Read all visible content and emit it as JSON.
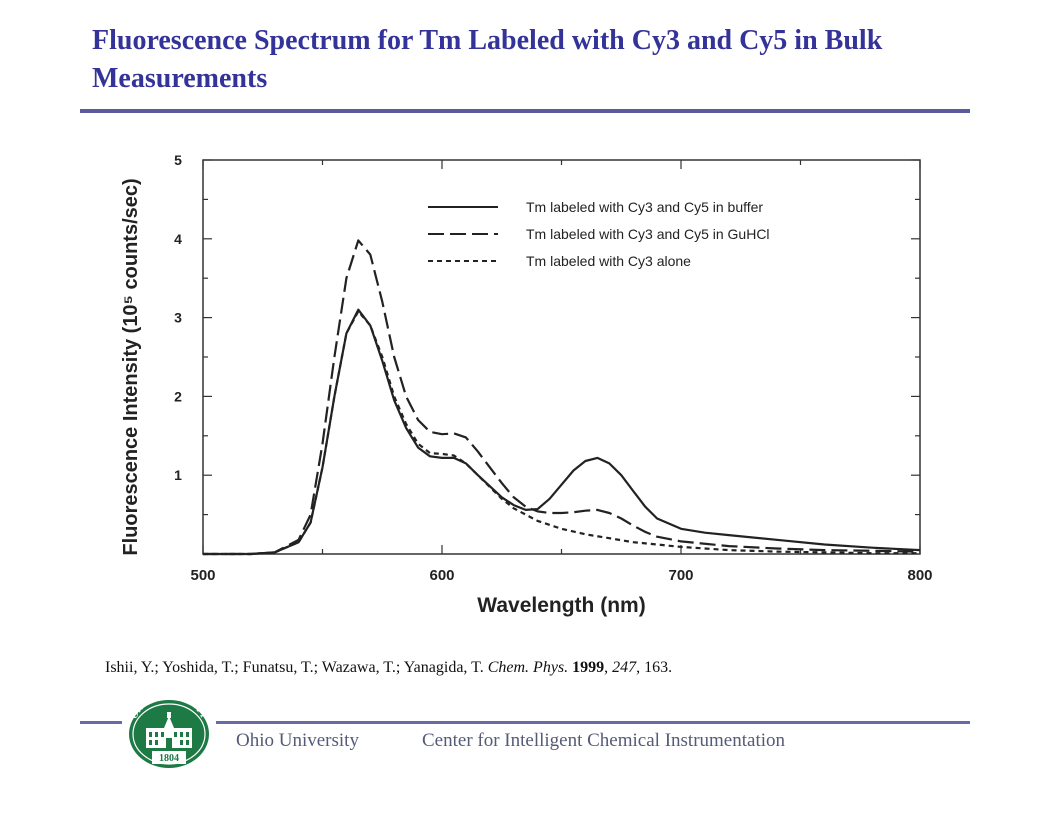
{
  "slide": {
    "title": "Fluorescence Spectrum for Tm Labeled with Cy3 and Cy5 in Bulk Measurements"
  },
  "citation": {
    "authors": "Ishii, Y.; Yoshida, T.; Funatsu, T.; Wazawa, T.; Yanagida, T. ",
    "journal": "Chem. Phys.",
    "year": "1999",
    "volume": "247",
    "pages": ", 163."
  },
  "footer": {
    "left": "Ohio University",
    "right": "Center for Intelligent Chemical Instrumentation",
    "seal_text": "OHIO UNIVERSITY",
    "seal_year": "1804",
    "seal_color": "#1e7a45"
  },
  "chart_data": {
    "type": "line",
    "xlabel": "Wavelength (nm)",
    "ylabel": "Fluorescence Intensity (10⁵ counts/sec)",
    "xlim": [
      500,
      800
    ],
    "ylim": [
      0,
      5
    ],
    "xticks": [
      500,
      600,
      700,
      800
    ],
    "yticks": [
      1,
      2,
      3,
      4,
      5
    ],
    "grid": false,
    "legend_position": "top-right",
    "series": [
      {
        "name": "Tm labeled with Cy3 and Cy5 in buffer",
        "style": "solid",
        "x": [
          500,
          520,
          530,
          540,
          545,
          550,
          555,
          560,
          565,
          570,
          575,
          580,
          585,
          590,
          595,
          600,
          605,
          610,
          615,
          620,
          625,
          630,
          635,
          640,
          645,
          650,
          655,
          660,
          665,
          670,
          675,
          680,
          685,
          690,
          700,
          710,
          720,
          740,
          760,
          780,
          800
        ],
        "y": [
          0,
          0,
          0.02,
          0.15,
          0.4,
          1.1,
          2.0,
          2.8,
          3.1,
          2.9,
          2.45,
          1.95,
          1.6,
          1.35,
          1.24,
          1.22,
          1.22,
          1.15,
          1.0,
          0.86,
          0.72,
          0.62,
          0.56,
          0.57,
          0.7,
          0.88,
          1.06,
          1.18,
          1.22,
          1.15,
          1.0,
          0.8,
          0.6,
          0.45,
          0.32,
          0.27,
          0.24,
          0.18,
          0.12,
          0.08,
          0.05
        ]
      },
      {
        "name": "Tm labeled with Cy3 and Cy5 in GuHCl",
        "style": "long-dash",
        "x": [
          500,
          520,
          530,
          540,
          545,
          550,
          555,
          560,
          565,
          570,
          575,
          580,
          585,
          590,
          595,
          600,
          605,
          610,
          615,
          620,
          625,
          630,
          635,
          640,
          645,
          650,
          655,
          660,
          665,
          670,
          675,
          680,
          685,
          690,
          700,
          720,
          740,
          760,
          780,
          800
        ],
        "y": [
          0,
          0,
          0.02,
          0.18,
          0.5,
          1.4,
          2.5,
          3.5,
          3.98,
          3.8,
          3.2,
          2.5,
          2.0,
          1.7,
          1.55,
          1.52,
          1.53,
          1.48,
          1.3,
          1.1,
          0.9,
          0.72,
          0.6,
          0.54,
          0.52,
          0.52,
          0.53,
          0.55,
          0.56,
          0.52,
          0.45,
          0.36,
          0.28,
          0.22,
          0.16,
          0.1,
          0.07,
          0.05,
          0.04,
          0.03
        ]
      },
      {
        "name": "Tm labeled with Cy3 alone",
        "style": "short-dash",
        "x": [
          500,
          520,
          530,
          540,
          545,
          550,
          555,
          560,
          565,
          570,
          575,
          580,
          585,
          590,
          595,
          600,
          605,
          610,
          615,
          620,
          625,
          630,
          640,
          650,
          660,
          670,
          680,
          690,
          700,
          720,
          740,
          760,
          780,
          800
        ],
        "y": [
          0,
          0,
          0.02,
          0.15,
          0.4,
          1.1,
          2.0,
          2.8,
          3.08,
          2.9,
          2.5,
          2.0,
          1.65,
          1.4,
          1.28,
          1.27,
          1.25,
          1.15,
          1.0,
          0.85,
          0.7,
          0.58,
          0.42,
          0.32,
          0.25,
          0.2,
          0.15,
          0.12,
          0.09,
          0.05,
          0.03,
          0.02,
          0.01,
          0.01
        ]
      }
    ]
  }
}
